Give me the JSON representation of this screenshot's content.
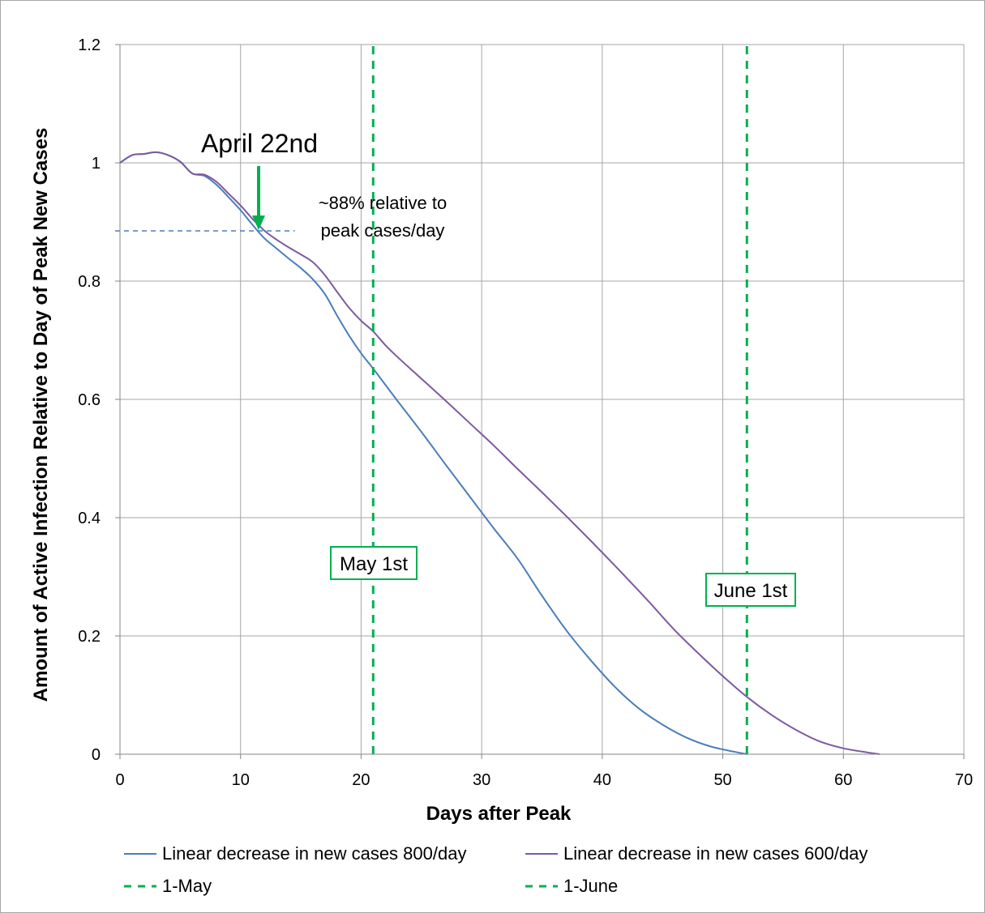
{
  "chart_data": {
    "type": "line",
    "xlabel": "Days after Peak",
    "ylabel": "Amount of Active Infection Relative to Day of Peak New Cases",
    "xlim": [
      0,
      70
    ],
    "ylim": [
      0,
      1.2
    ],
    "x_ticks": [
      "0",
      "10",
      "20",
      "30",
      "40",
      "50",
      "60",
      "70"
    ],
    "y_ticks": [
      "0",
      "0.2",
      "0.4",
      "0.6",
      "0.8",
      "1",
      "1.2"
    ],
    "grid": true,
    "legend_position": "bottom",
    "series": [
      {
        "name": "Linear decrease in new cases 800/day",
        "color": "#4a7ebb",
        "style": "solid",
        "points": [
          [
            0,
            1.0
          ],
          [
            1,
            1.013
          ],
          [
            2,
            1.015
          ],
          [
            3,
            1.018
          ],
          [
            4,
            1.013
          ],
          [
            5,
            1.002
          ],
          [
            6,
            0.982
          ],
          [
            7,
            0.978
          ],
          [
            8,
            0.963
          ],
          [
            9,
            0.942
          ],
          [
            10,
            0.92
          ],
          [
            11,
            0.895
          ],
          [
            12,
            0.872
          ],
          [
            13,
            0.855
          ],
          [
            14,
            0.838
          ],
          [
            15,
            0.822
          ],
          [
            16,
            0.803
          ],
          [
            17,
            0.778
          ],
          [
            18,
            0.742
          ],
          [
            19,
            0.708
          ],
          [
            20,
            0.678
          ],
          [
            21,
            0.652
          ],
          [
            22,
            0.625
          ],
          [
            23,
            0.598
          ],
          [
            25,
            0.545
          ],
          [
            27,
            0.49
          ],
          [
            29,
            0.436
          ],
          [
            31,
            0.382
          ],
          [
            33,
            0.33
          ],
          [
            35,
            0.268
          ],
          [
            37,
            0.21
          ],
          [
            39,
            0.16
          ],
          [
            41,
            0.115
          ],
          [
            43,
            0.078
          ],
          [
            45,
            0.05
          ],
          [
            47,
            0.028
          ],
          [
            49,
            0.013
          ],
          [
            51,
            0.004
          ],
          [
            52,
            0.0
          ]
        ]
      },
      {
        "name": "Linear decrease in new cases 600/day",
        "color": "#7d5aa0",
        "style": "solid",
        "points": [
          [
            0,
            1.0
          ],
          [
            1,
            1.013
          ],
          [
            2,
            1.015
          ],
          [
            3,
            1.018
          ],
          [
            4,
            1.013
          ],
          [
            5,
            1.002
          ],
          [
            6,
            0.982
          ],
          [
            7,
            0.98
          ],
          [
            8,
            0.968
          ],
          [
            9,
            0.948
          ],
          [
            10,
            0.928
          ],
          [
            11,
            0.905
          ],
          [
            12,
            0.885
          ],
          [
            13,
            0.87
          ],
          [
            14,
            0.857
          ],
          [
            15,
            0.845
          ],
          [
            16,
            0.832
          ],
          [
            17,
            0.81
          ],
          [
            18,
            0.782
          ],
          [
            19,
            0.755
          ],
          [
            20,
            0.733
          ],
          [
            21,
            0.715
          ],
          [
            22,
            0.692
          ],
          [
            23,
            0.672
          ],
          [
            25,
            0.635
          ],
          [
            27,
            0.598
          ],
          [
            29,
            0.56
          ],
          [
            31,
            0.522
          ],
          [
            33,
            0.482
          ],
          [
            35,
            0.443
          ],
          [
            37,
            0.403
          ],
          [
            39,
            0.362
          ],
          [
            41,
            0.32
          ],
          [
            43,
            0.277
          ],
          [
            44,
            0.255
          ],
          [
            46,
            0.21
          ],
          [
            48,
            0.17
          ],
          [
            50,
            0.132
          ],
          [
            52,
            0.097
          ],
          [
            54,
            0.067
          ],
          [
            56,
            0.042
          ],
          [
            58,
            0.022
          ],
          [
            60,
            0.01
          ],
          [
            62,
            0.003
          ],
          [
            63,
            0.0
          ]
        ]
      },
      {
        "name": "1-May",
        "color": "#00b050",
        "style": "dashed",
        "points": [
          [
            21,
            0
          ],
          [
            21,
            1.2
          ]
        ]
      },
      {
        "name": "1-June",
        "color": "#00b050",
        "style": "dashed",
        "points": [
          [
            52,
            0
          ],
          [
            52,
            1.2
          ]
        ]
      }
    ],
    "annotations": {
      "arrow_label": "April 22nd",
      "arrow_x": 11.5,
      "reference_y": 0.885,
      "reference_text_line1": "~88% relative to",
      "reference_text_line2": "peak cases/day",
      "may_box": "May 1st",
      "june_box": "June 1st"
    }
  }
}
